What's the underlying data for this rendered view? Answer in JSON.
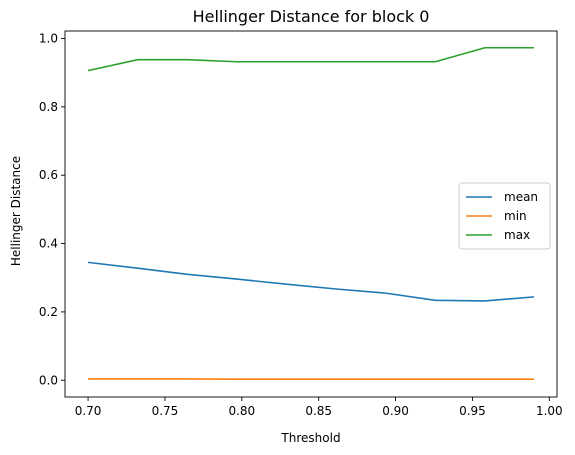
{
  "chart_data": {
    "type": "line",
    "title": "Hellinger Distance for block 0",
    "xlabel": "Threshold",
    "ylabel": "Hellinger Distance",
    "xlim": [
      0.685,
      1.005
    ],
    "ylim": [
      -0.049,
      1.022
    ],
    "xticks": [
      0.7,
      0.75,
      0.8,
      0.85,
      0.9,
      0.95,
      1.0
    ],
    "xtick_labels": [
      "0.70",
      "0.75",
      "0.80",
      "0.85",
      "0.90",
      "0.95",
      "1.00"
    ],
    "yticks": [
      0.0,
      0.2,
      0.4,
      0.6,
      0.8,
      1.0
    ],
    "ytick_labels": [
      "0.0",
      "0.2",
      "0.4",
      "0.6",
      "0.8",
      "1.0"
    ],
    "grid": false,
    "legend_position": "center-right",
    "x": [
      0.7,
      0.7323,
      0.7645,
      0.7968,
      0.829,
      0.8613,
      0.8935,
      0.9258,
      0.9581,
      0.99
    ],
    "series": [
      {
        "name": "mean",
        "color": "#1f77b4",
        "values": [
          0.345,
          0.328,
          0.31,
          0.296,
          0.281,
          0.267,
          0.255,
          0.234,
          0.232,
          0.244
        ]
      },
      {
        "name": "min",
        "color": "#ff7f0e",
        "values": [
          0.004,
          0.004,
          0.004,
          0.003,
          0.003,
          0.003,
          0.003,
          0.003,
          0.003,
          0.003
        ]
      },
      {
        "name": "max",
        "color": "#2ca02c",
        "values": [
          0.906,
          0.938,
          0.938,
          0.932,
          0.932,
          0.932,
          0.932,
          0.932,
          0.973,
          0.973
        ]
      }
    ]
  }
}
